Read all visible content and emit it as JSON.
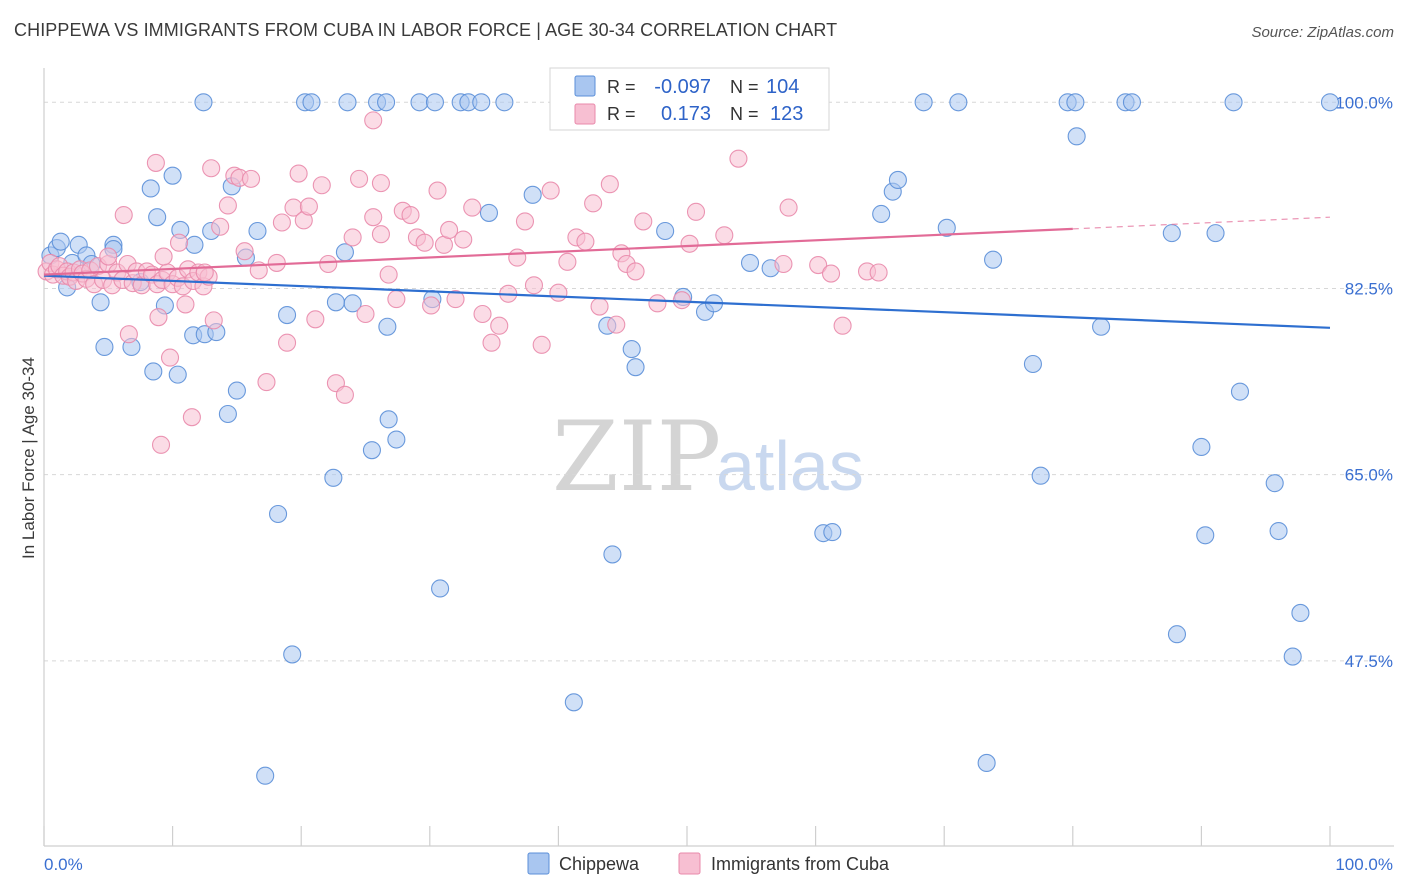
{
  "title": "CHIPPEWA VS IMMIGRANTS FROM CUBA IN LABOR FORCE | AGE 30-34 CORRELATION CHART",
  "source": "Source: ZipAtlas.com",
  "watermark": {
    "zip": "ZIP",
    "atlas": "atlas"
  },
  "colors": {
    "chippewa_fill": "#a9c6f0",
    "chippewa_stroke": "#5b8fd8",
    "chippewa_line": "#2e6fd0",
    "cuba_fill": "#f7bfd2",
    "cuba_stroke": "#e98aab",
    "cuba_line": "#e26b97",
    "tick_label": "#3a6fd1",
    "grid": "#d7d7d7"
  },
  "legend": {
    "rows": [
      {
        "r_label": "R =",
        "r_value": "-0.097",
        "n_label": "N =",
        "n_value": "104"
      },
      {
        "r_label": "R =",
        "r_value": "0.173",
        "n_label": "N =",
        "n_value": "123"
      }
    ]
  },
  "bottom_legend": [
    "Chippewa",
    "Immigrants from Cuba"
  ],
  "chart_data": {
    "type": "scatter",
    "title": "CHIPPEWA VS IMMIGRANTS FROM CUBA IN LABOR FORCE | AGE 30-34 CORRELATION CHART",
    "xlabel": "",
    "ylabel": "In Labor Force | Age 30-34",
    "xlim": [
      0,
      100
    ],
    "ylim": [
      30,
      102
    ],
    "x_tick_labels": [
      "0.0%",
      "100.0%"
    ],
    "y_ticks": [
      {
        "value": 100.0,
        "label": "100.0%"
      },
      {
        "value": 82.5,
        "label": "82.5%"
      },
      {
        "value": 65.0,
        "label": "65.0%"
      },
      {
        "value": 47.5,
        "label": "47.5%"
      }
    ],
    "grid": "horizontal dashed",
    "legend_position": "top-center",
    "series": [
      {
        "name": "Chippewa",
        "r": -0.097,
        "n": 104,
        "trend": {
          "x": [
            0,
            100
          ],
          "y": [
            83.7,
            78.8
          ]
        },
        "points": [
          [
            0.5,
            85.6
          ],
          [
            1.0,
            86.3
          ],
          [
            1.3,
            86.9
          ],
          [
            1.8,
            82.6
          ],
          [
            2.2,
            84.9
          ],
          [
            2.7,
            86.6
          ],
          [
            3.3,
            85.6
          ],
          [
            3.7,
            84.8
          ],
          [
            4.4,
            81.2
          ],
          [
            4.7,
            77.0
          ],
          [
            5.4,
            86.6
          ],
          [
            5.4,
            86.2
          ],
          [
            6.8,
            77.0
          ],
          [
            7.5,
            83.1
          ],
          [
            8.3,
            91.9
          ],
          [
            8.5,
            74.7
          ],
          [
            8.8,
            89.2
          ],
          [
            9.4,
            80.9
          ],
          [
            10.0,
            93.1
          ],
          [
            10.4,
            74.4
          ],
          [
            10.6,
            88.0
          ],
          [
            11.6,
            78.1
          ],
          [
            11.7,
            86.6
          ],
          [
            12.5,
            78.2
          ],
          [
            13.0,
            87.9
          ],
          [
            13.4,
            78.4
          ],
          [
            14.3,
            70.7
          ],
          [
            14.6,
            92.1
          ],
          [
            15.0,
            72.9
          ],
          [
            15.7,
            85.4
          ],
          [
            16.6,
            87.9
          ],
          [
            17.2,
            36.7
          ],
          [
            18.2,
            61.3
          ],
          [
            18.9,
            80.0
          ],
          [
            19.3,
            48.1
          ],
          [
            22.5,
            64.7
          ],
          [
            22.7,
            81.2
          ],
          [
            23.4,
            85.9
          ],
          [
            24.0,
            81.1
          ],
          [
            25.5,
            67.3
          ],
          [
            26.7,
            78.9
          ],
          [
            26.8,
            70.2
          ],
          [
            27.4,
            68.3
          ],
          [
            30.2,
            81.5
          ],
          [
            30.8,
            54.3
          ],
          [
            34.6,
            89.6
          ],
          [
            38.0,
            91.3
          ],
          [
            41.2,
            43.6
          ],
          [
            43.8,
            79.0
          ],
          [
            44.2,
            57.5
          ],
          [
            45.7,
            76.8
          ],
          [
            46.0,
            75.1
          ],
          [
            48.3,
            87.9
          ],
          [
            49.7,
            81.7
          ],
          [
            51.4,
            80.3
          ],
          [
            52.1,
            81.1
          ],
          [
            54.9,
            84.9
          ],
          [
            56.5,
            84.4
          ],
          [
            60.6,
            59.5
          ],
          [
            61.3,
            59.6
          ],
          [
            65.1,
            89.5
          ],
          [
            66.0,
            91.6
          ],
          [
            66.4,
            92.7
          ],
          [
            70.2,
            88.2
          ],
          [
            73.3,
            37.9
          ],
          [
            73.8,
            85.2
          ],
          [
            76.9,
            75.4
          ],
          [
            77.5,
            64.9
          ],
          [
            80.3,
            96.8
          ],
          [
            82.2,
            78.9
          ],
          [
            87.7,
            87.7
          ],
          [
            88.1,
            50.0
          ],
          [
            90.0,
            67.6
          ],
          [
            90.3,
            59.3
          ],
          [
            91.1,
            87.7
          ],
          [
            93.0,
            72.8
          ],
          [
            95.7,
            64.2
          ],
          [
            96.0,
            59.7
          ],
          [
            97.1,
            47.9
          ],
          [
            97.7,
            52.0
          ],
          [
            12.4,
            100
          ],
          [
            20.3,
            100
          ],
          [
            20.8,
            100
          ],
          [
            23.6,
            100
          ],
          [
            25.9,
            100
          ],
          [
            26.6,
            100
          ],
          [
            29.2,
            100
          ],
          [
            30.4,
            100
          ],
          [
            32.4,
            100
          ],
          [
            33.0,
            100
          ],
          [
            34.0,
            100
          ],
          [
            35.8,
            100
          ],
          [
            44.8,
            100
          ],
          [
            46.5,
            100
          ],
          [
            48.7,
            100
          ],
          [
            52.6,
            100
          ],
          [
            60.3,
            100
          ],
          [
            68.4,
            100
          ],
          [
            71.1,
            100
          ],
          [
            79.6,
            100
          ],
          [
            80.2,
            100
          ],
          [
            84.1,
            100
          ],
          [
            84.6,
            100
          ],
          [
            92.5,
            100
          ],
          [
            100.0,
            100
          ]
        ]
      },
      {
        "name": "Immigrants from Cuba",
        "r": 0.173,
        "n": 123,
        "trend": {
          "x": [
            0,
            80
          ],
          "y": [
            83.8,
            88.1
          ]
        },
        "trend_dashed_extension": {
          "x": [
            80,
            100
          ],
          "y": [
            88.1,
            89.2
          ]
        },
        "points": [
          [
            0.2,
            84.1
          ],
          [
            0.5,
            84.9
          ],
          [
            0.7,
            83.8
          ],
          [
            1.0,
            84.3
          ],
          [
            1.2,
            84.6
          ],
          [
            1.5,
            83.7
          ],
          [
            1.8,
            84.1
          ],
          [
            2.0,
            83.6
          ],
          [
            2.3,
            84.0
          ],
          [
            2.5,
            83.2
          ],
          [
            2.8,
            84.3
          ],
          [
            3.0,
            83.9
          ],
          [
            3.3,
            83.4
          ],
          [
            3.6,
            84.2
          ],
          [
            3.9,
            82.9
          ],
          [
            4.2,
            84.6
          ],
          [
            4.6,
            83.3
          ],
          [
            5.0,
            84.8
          ],
          [
            5.3,
            82.8
          ],
          [
            5.7,
            84.0
          ],
          [
            6.1,
            83.3
          ],
          [
            6.5,
            84.8
          ],
          [
            6.9,
            83.0
          ],
          [
            7.2,
            84.1
          ],
          [
            7.6,
            82.8
          ],
          [
            8.0,
            84.1
          ],
          [
            8.4,
            83.8
          ],
          [
            8.8,
            82.9
          ],
          [
            9.2,
            83.3
          ],
          [
            9.6,
            84.0
          ],
          [
            10.0,
            82.9
          ],
          [
            10.4,
            83.5
          ],
          [
            10.8,
            82.7
          ],
          [
            11.2,
            84.3
          ],
          [
            11.6,
            83.2
          ],
          [
            12.0,
            84.0
          ],
          [
            12.4,
            82.7
          ],
          [
            12.8,
            83.6
          ],
          [
            5.0,
            85.5
          ],
          [
            6.2,
            89.4
          ],
          [
            6.6,
            78.2
          ],
          [
            8.7,
            94.3
          ],
          [
            8.9,
            79.8
          ],
          [
            9.1,
            67.8
          ],
          [
            9.3,
            85.5
          ],
          [
            9.8,
            76.0
          ],
          [
            10.5,
            86.8
          ],
          [
            11.0,
            81.0
          ],
          [
            11.5,
            70.4
          ],
          [
            12.5,
            84.0
          ],
          [
            13.0,
            93.8
          ],
          [
            13.2,
            79.5
          ],
          [
            13.7,
            88.3
          ],
          [
            14.3,
            90.3
          ],
          [
            14.8,
            93.1
          ],
          [
            15.2,
            92.9
          ],
          [
            15.6,
            86.0
          ],
          [
            16.1,
            92.8
          ],
          [
            16.7,
            84.2
          ],
          [
            17.3,
            73.7
          ],
          [
            18.1,
            84.9
          ],
          [
            18.5,
            88.7
          ],
          [
            18.9,
            77.4
          ],
          [
            19.4,
            90.1
          ],
          [
            19.8,
            93.3
          ],
          [
            20.2,
            88.9
          ],
          [
            20.6,
            90.2
          ],
          [
            21.1,
            79.6
          ],
          [
            21.6,
            92.2
          ],
          [
            22.1,
            84.8
          ],
          [
            22.7,
            73.6
          ],
          [
            23.4,
            72.5
          ],
          [
            24.0,
            87.3
          ],
          [
            24.5,
            92.8
          ],
          [
            25.0,
            80.1
          ],
          [
            25.6,
            89.2
          ],
          [
            26.2,
            87.6
          ],
          [
            26.8,
            83.8
          ],
          [
            27.4,
            81.5
          ],
          [
            27.9,
            89.8
          ],
          [
            28.5,
            89.4
          ],
          [
            29.0,
            87.3
          ],
          [
            29.6,
            86.8
          ],
          [
            30.1,
            80.9
          ],
          [
            30.6,
            91.7
          ],
          [
            31.1,
            86.6
          ],
          [
            31.5,
            88.0
          ],
          [
            32.0,
            81.5
          ],
          [
            32.6,
            87.1
          ],
          [
            33.3,
            90.1
          ],
          [
            34.1,
            80.1
          ],
          [
            34.8,
            77.4
          ],
          [
            35.4,
            79.0
          ],
          [
            36.1,
            82.0
          ],
          [
            36.8,
            85.4
          ],
          [
            37.4,
            88.8
          ],
          [
            38.1,
            82.8
          ],
          [
            38.7,
            77.2
          ],
          [
            39.4,
            91.7
          ],
          [
            40.0,
            82.1
          ],
          [
            40.7,
            85.0
          ],
          [
            41.4,
            87.3
          ],
          [
            42.1,
            86.9
          ],
          [
            42.7,
            90.5
          ],
          [
            43.2,
            80.8
          ],
          [
            44.0,
            92.3
          ],
          [
            44.5,
            79.1
          ],
          [
            44.9,
            85.8
          ],
          [
            45.3,
            84.8
          ],
          [
            46.0,
            84.1
          ],
          [
            46.6,
            88.8
          ],
          [
            47.7,
            81.1
          ],
          [
            49.6,
            81.4
          ],
          [
            50.2,
            86.7
          ],
          [
            50.7,
            89.7
          ],
          [
            52.9,
            87.5
          ],
          [
            54.0,
            94.7
          ],
          [
            57.5,
            84.8
          ],
          [
            57.9,
            90.1
          ],
          [
            60.2,
            84.7
          ],
          [
            61.2,
            83.9
          ],
          [
            62.1,
            79.0
          ],
          [
            64.0,
            84.1
          ],
          [
            64.9,
            84.0
          ],
          [
            25.6,
            98.3
          ],
          [
            26.2,
            92.4
          ]
        ]
      }
    ]
  }
}
